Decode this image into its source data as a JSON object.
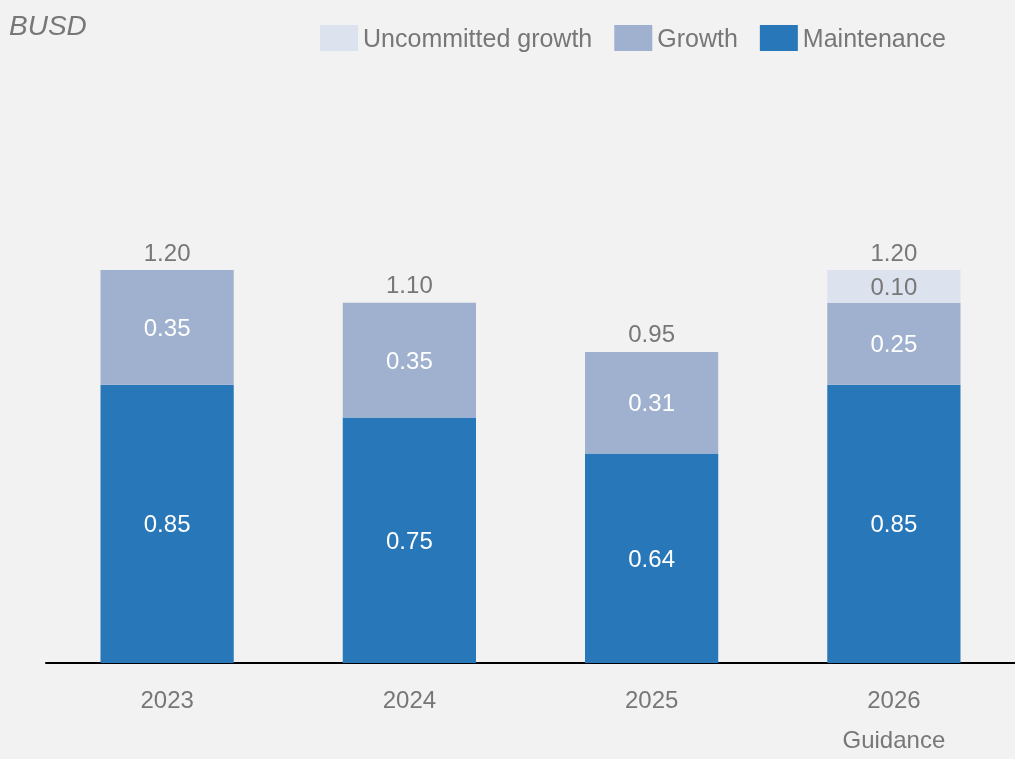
{
  "chart_data": {
    "type": "bar",
    "title": "BUSD",
    "stacked": true,
    "categories": [
      "2023",
      "2024",
      "2025",
      "2026\nGuidance"
    ],
    "ylim": [
      0,
      1.2
    ],
    "tick_labels": "x",
    "legend": "top right",
    "series": [
      {
        "name": "Maintenance",
        "color": "#2777b9",
        "values": [
          0.85,
          0.75,
          0.64,
          0.85
        ],
        "value_labels": [
          "0.85",
          "0.75",
          "0.64",
          "0.85"
        ]
      },
      {
        "name": "Growth",
        "color": "#9fb1cf",
        "values": [
          0.35,
          0.35,
          0.31,
          0.25
        ],
        "value_labels": [
          "0.35",
          "0.35",
          "0.31",
          "0.25"
        ]
      },
      {
        "name": "Uncommitted growth",
        "color": "#dde3ee",
        "values": [
          null,
          null,
          null,
          0.1
        ],
        "value_labels": [
          null,
          null,
          null,
          "0.10"
        ]
      }
    ],
    "totals": [
      "1.20",
      "1.10",
      "0.95",
      "1.20"
    ]
  }
}
